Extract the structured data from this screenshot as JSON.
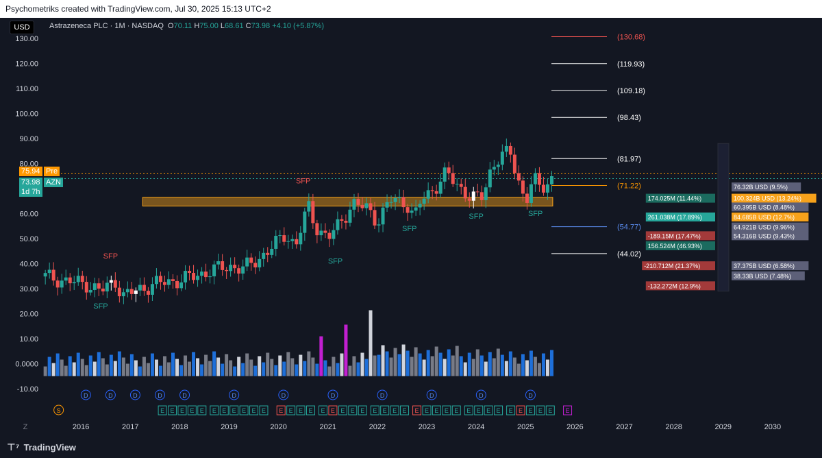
{
  "header": {
    "credit": "Psychometriks created with TradingView.com, Jul 30, 2025 15:13 UTC+2"
  },
  "toolbar": {
    "currency": "USD"
  },
  "legend": {
    "symbol": "Astrazeneca PLC · 1M · NASDAQ",
    "open_label": "O",
    "open": "70.11",
    "high_label": "H",
    "high": "75.00",
    "low_label": "L",
    "low": "68.61",
    "close_label": "C",
    "close": "73.98",
    "change": "+4.10 (+5.87%)"
  },
  "price_tags": {
    "pre_value": "75.94",
    "pre_label": "Pre",
    "last_value": "73.98",
    "last_label": "AZN",
    "countdown": "1d 7h"
  },
  "footer": {
    "brand": "TradingView",
    "z_button": "Z"
  },
  "colors": {
    "up": "#26a69a",
    "down": "#ef5350",
    "zone": "#f7a21b",
    "pre": "#ff9800",
    "last": "#26a69a",
    "purple": "#c21fd1",
    "blue": "#1e6fd9",
    "grey": "#787b86"
  },
  "chart_data": {
    "type": "candlestick",
    "ylim": [
      -15,
      134
    ],
    "y_ticks": [
      "130.00",
      "120.00",
      "110.00",
      "100.00",
      "90.00",
      "80.00",
      "70.00",
      "60.00",
      "50.00",
      "40.00",
      "30.00",
      "20.00",
      "10.00",
      "0.0000",
      "-10.00"
    ],
    "y_tick_values": [
      130,
      120,
      110,
      100,
      90,
      80,
      70,
      60,
      50,
      40,
      30,
      20,
      10,
      0,
      -10
    ],
    "x_ticks": [
      "2016",
      "2017",
      "2018",
      "2019",
      "2020",
      "2021",
      "2022",
      "2023",
      "2024",
      "2025",
      "2026",
      "2027",
      "2028",
      "2029",
      "2030"
    ],
    "x_range": [
      2015.25,
      2031.0
    ],
    "anchors": [
      [
        2015.25,
        35
      ],
      [
        2015.7,
        33
      ],
      [
        2016.1,
        32
      ],
      [
        2016.4,
        29
      ],
      [
        2016.7,
        33
      ],
      [
        2016.85,
        27
      ],
      [
        2017.1,
        29
      ],
      [
        2017.5,
        32
      ],
      [
        2017.9,
        33
      ],
      [
        2018.3,
        35
      ],
      [
        2018.6,
        37
      ],
      [
        2019.0,
        39
      ],
      [
        2019.3,
        38
      ],
      [
        2019.6,
        42
      ],
      [
        2019.9,
        47
      ],
      [
        2020.15,
        52
      ],
      [
        2020.35,
        47
      ],
      [
        2020.5,
        57
      ],
      [
        2020.6,
        63
      ],
      [
        2020.75,
        55
      ],
      [
        2021.0,
        50
      ],
      [
        2021.2,
        55
      ],
      [
        2021.5,
        64
      ],
      [
        2021.8,
        62
      ],
      [
        2022.0,
        57
      ],
      [
        2022.3,
        66
      ],
      [
        2022.6,
        64
      ],
      [
        2022.75,
        58
      ],
      [
        2022.9,
        66
      ],
      [
        2023.15,
        70
      ],
      [
        2023.4,
        76
      ],
      [
        2023.7,
        70
      ],
      [
        2023.9,
        66
      ],
      [
        2024.1,
        66
      ],
      [
        2024.3,
        78
      ],
      [
        2024.5,
        83
      ],
      [
        2024.7,
        84
      ],
      [
        2024.85,
        74
      ],
      [
        2025.0,
        64
      ],
      [
        2025.15,
        74
      ],
      [
        2025.3,
        70
      ],
      [
        2025.45,
        73
      ],
      [
        2025.55,
        74
      ]
    ],
    "volume_note": "monthly volume histogram, blue/grey/purple/white bars",
    "fib_levels": [
      {
        "value": 130.68,
        "label": "(130.68)",
        "color": "#ef5350"
      },
      {
        "value": 119.93,
        "label": "(119.93)",
        "color": "#ffffff"
      },
      {
        "value": 109.18,
        "label": "(109.18)",
        "color": "#ffffff"
      },
      {
        "value": 98.43,
        "label": "(98.43)",
        "color": "#ffffff"
      },
      {
        "value": 81.97,
        "label": "(81.97)",
        "color": "#ffffff"
      },
      {
        "value": 71.22,
        "label": "(71.22)",
        "color": "#ff9800"
      },
      {
        "value": 54.77,
        "label": "(54.77)",
        "color": "#5b8def"
      },
      {
        "value": 44.02,
        "label": "(44.02)",
        "color": "#ffffff"
      }
    ],
    "zone": {
      "from": 2017.25,
      "to": 2025.55,
      "low": 63.0,
      "high": 66.5
    },
    "sfp_labels": [
      {
        "text": "SFP",
        "x": 2016.6,
        "y": 42,
        "color": "#ef5350"
      },
      {
        "text": "SFP",
        "x": 2016.4,
        "y": 22,
        "color": "#26a69a"
      },
      {
        "text": "SFP",
        "x": 2020.5,
        "y": 72,
        "color": "#ef5350"
      },
      {
        "text": "SFP",
        "x": 2021.15,
        "y": 40,
        "color": "#26a69a"
      },
      {
        "text": "SFP",
        "x": 2022.65,
        "y": 53,
        "color": "#26a69a"
      },
      {
        "text": "SFP",
        "x": 2024.0,
        "y": 58,
        "color": "#26a69a"
      },
      {
        "text": "SFP",
        "x": 2025.2,
        "y": 59,
        "color": "#26a69a"
      }
    ],
    "profile_labels": [
      {
        "text": "76.32B USD (9.5%)",
        "side": "R",
        "y": 70.5
      },
      {
        "text": "174.025M (11.44%)",
        "side": "L",
        "y": 66
      },
      {
        "text": "100.324B USD (13.24%)",
        "side": "R",
        "y": 66,
        "hl": true
      },
      {
        "text": "60.395B USD (8.48%)",
        "side": "R",
        "y": 62.5
      },
      {
        "text": "261.038M (17.89%)",
        "side": "L",
        "y": 58.5,
        "hl": true
      },
      {
        "text": "84.685B USD (12.7%)",
        "side": "R",
        "y": 58.5,
        "hl": true
      },
      {
        "text": "64.921B USD (9.96%)",
        "side": "R",
        "y": 54.5
      },
      {
        "text": "-189.15M (17.47%)",
        "side": "L",
        "y": 51
      },
      {
        "text": "54.316B USD (9.43%)",
        "side": "R",
        "y": 51
      },
      {
        "text": "156.524M (46.93%)",
        "side": "L",
        "y": 47
      },
      {
        "text": "-210.712M (21.37%)",
        "side": "L",
        "y": 39
      },
      {
        "text": "37.375B USD (6.58%)",
        "side": "R",
        "y": 39
      },
      {
        "text": "38.33B USD (7.48%)",
        "side": "R",
        "y": 35
      },
      {
        "text": "-132.272M (12.9%)",
        "side": "L",
        "y": 31
      }
    ],
    "events": {
      "dividends_x": [
        2016.1,
        2016.6,
        2017.1,
        2017.6,
        2018.1,
        2019.1,
        2020.1,
        2021.1,
        2022.1,
        2023.1,
        2024.1,
        2025.1
      ],
      "earnings_x": [
        2017.65,
        2017.85,
        2018.05,
        2018.25,
        2018.45,
        2018.7,
        2018.9,
        2019.1,
        2019.3,
        2019.5,
        2019.7,
        2020.05,
        2020.25,
        2020.45,
        2020.65,
        2020.9,
        2021.1,
        2021.3,
        2021.5,
        2021.7,
        2021.95,
        2022.15,
        2022.35,
        2022.55,
        2022.8,
        2023.0,
        2023.2,
        2023.4,
        2023.6,
        2023.85,
        2024.05,
        2024.25,
        2024.45,
        2024.7,
        2024.9,
        2025.1,
        2025.3,
        2025.5
      ],
      "splits_x": [
        2015.55
      ],
      "future_earnings_x": [
        2025.85
      ],
      "dividend_letter": "D",
      "earnings_letter": "E",
      "split_letter": "S"
    }
  }
}
